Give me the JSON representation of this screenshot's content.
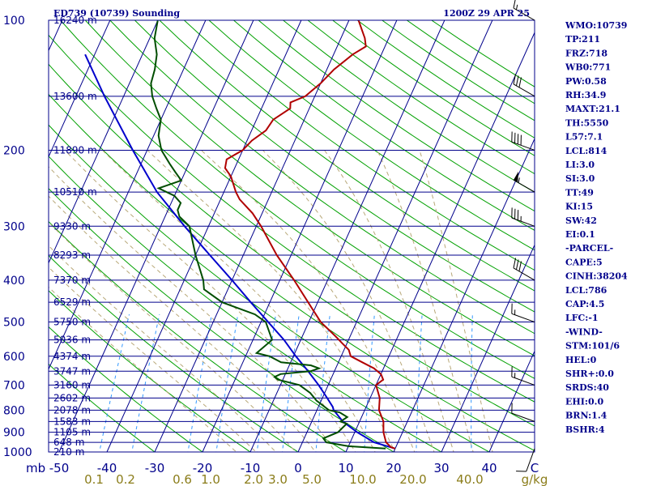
{
  "header": {
    "station_title": "ED739 (10739) Sounding",
    "time_title": "1200Z 29 APR 25"
  },
  "indices": [
    "WMO:10739",
    "TP:211",
    "FRZ:718",
    "WB0:771",
    "PW:0.58",
    "RH:34.9",
    "MAXT:21.1",
    "TH:5550",
    "L57:7.1",
    "LCL:814",
    "LI:3.0",
    "SI:3.0",
    "TT:49",
    "KI:15",
    "SW:42",
    "EI:0.1",
    "-PARCEL-",
    "CAPE:5",
    "CINH:38204",
    "LCL:786",
    "CAP:4.5",
    "LFC:-1",
    "-WIND-",
    "STM:101/6",
    "HEL:0",
    "SHR+:0.0",
    "SRDS:40",
    "EHI:0.0",
    "BRN:1.4",
    "BSHR:4"
  ],
  "colors": {
    "axes": "#00008b",
    "isotherm": "#00008b",
    "dry_adiabat": "#00a000",
    "moist_adiabat": "#b8a878",
    "mixing_ratio": "#3399ff",
    "temperature": "#b00000",
    "dewpoint": "#004d00",
    "parcel": "#0000cc",
    "wind_barb": "#000000"
  },
  "chart_data": {
    "type": "skew-t",
    "pressure_labels": [
      "100",
      "200",
      "300",
      "400",
      "500",
      "600",
      "700",
      "800",
      "900",
      "1000"
    ],
    "pressure_levels": [
      100,
      200,
      300,
      400,
      500,
      600,
      700,
      800,
      900,
      1000
    ],
    "height_labels": [
      {
        "p": 100,
        "text": "16240 m"
      },
      {
        "p": 150,
        "text": "13600 m"
      },
      {
        "p": 200,
        "text": "11890 m"
      },
      {
        "p": 250,
        "text": "10510 m"
      },
      {
        "p": 300,
        "text": "9330 m"
      },
      {
        "p": 350,
        "text": "8293 m"
      },
      {
        "p": 400,
        "text": "7370 m"
      },
      {
        "p": 450,
        "text": "6529 m"
      },
      {
        "p": 500,
        "text": "5750 m"
      },
      {
        "p": 550,
        "text": "5036 m"
      },
      {
        "p": 600,
        "text": "4374 m"
      },
      {
        "p": 650,
        "text": "3747 m"
      },
      {
        "p": 700,
        "text": "3160 m"
      },
      {
        "p": 750,
        "text": "2602 m"
      },
      {
        "p": 800,
        "text": "2078 m"
      },
      {
        "p": 850,
        "text": "1583 m"
      },
      {
        "p": 900,
        "text": "1105 m"
      },
      {
        "p": 950,
        "text": "648 m"
      },
      {
        "p": 1000,
        "text": "210 m"
      }
    ],
    "xaxis_unit": "mb",
    "temperature_labels": [
      "-50",
      "-40",
      "-30",
      "-20",
      "-10",
      "0",
      "10",
      "20",
      "30",
      "40",
      "C"
    ],
    "mixing_ratio_labels": [
      "0.1",
      "0.2",
      "0.6",
      "1.0",
      "2.0",
      "3.0",
      "5.0",
      "10.0",
      "20.0",
      "40.0",
      "g/kg"
    ],
    "mixing_ratio_values": [
      0.1,
      0.2,
      0.6,
      1.0,
      2.0,
      3.0,
      5.0,
      10.0,
      20.0,
      40.0
    ],
    "temperature_profile": [
      [
        982,
        20.0
      ],
      [
        975,
        19.0
      ],
      [
        950,
        17.5
      ],
      [
        900,
        16.0
      ],
      [
        850,
        15.0
      ],
      [
        800,
        13.0
      ],
      [
        750,
        12.0
      ],
      [
        700,
        10.0
      ],
      [
        680,
        11.0
      ],
      [
        660,
        10.0
      ],
      [
        640,
        8.0
      ],
      [
        620,
        5.0
      ],
      [
        600,
        2.0
      ],
      [
        580,
        1.0
      ],
      [
        560,
        -1.0
      ],
      [
        540,
        -3.0
      ],
      [
        500,
        -7.5
      ],
      [
        450,
        -12.0
      ],
      [
        400,
        -17.0
      ],
      [
        350,
        -23.0
      ],
      [
        300,
        -29.0
      ],
      [
        280,
        -32.0
      ],
      [
        260,
        -36.0
      ],
      [
        250,
        -37.5
      ],
      [
        230,
        -40.0
      ],
      [
        220,
        -42.0
      ],
      [
        210,
        -42.5
      ],
      [
        200,
        -40.0
      ],
      [
        190,
        -39.0
      ],
      [
        180,
        -37.0
      ],
      [
        170,
        -36.5
      ],
      [
        160,
        -34.0
      ],
      [
        155,
        -34.5
      ],
      [
        150,
        -32.0
      ],
      [
        140,
        -30.0
      ],
      [
        130,
        -28.5
      ],
      [
        120,
        -26.0
      ],
      [
        115,
        -24.0
      ],
      [
        110,
        -25.0
      ],
      [
        100,
        -28.0
      ]
    ],
    "dewpoint_profile": [
      [
        982,
        18.0
      ],
      [
        970,
        10.0
      ],
      [
        950,
        5.0
      ],
      [
        930,
        4.0
      ],
      [
        900,
        6.5
      ],
      [
        880,
        7.0
      ],
      [
        860,
        7.5
      ],
      [
        850,
        6.0
      ],
      [
        830,
        7.0
      ],
      [
        810,
        5.0
      ],
      [
        800,
        2.5
      ],
      [
        760,
        -1.0
      ],
      [
        730,
        -3.0
      ],
      [
        700,
        -6.0
      ],
      [
        680,
        -11.0
      ],
      [
        670,
        -12.0
      ],
      [
        660,
        -11.0
      ],
      [
        650,
        -5.0
      ],
      [
        640,
        -3.5
      ],
      [
        630,
        -5.5
      ],
      [
        620,
        -12.0
      ],
      [
        600,
        -15.0
      ],
      [
        590,
        -18.0
      ],
      [
        550,
        -16.0
      ],
      [
        500,
        -19.0
      ],
      [
        480,
        -22.0
      ],
      [
        450,
        -30.0
      ],
      [
        420,
        -35.0
      ],
      [
        400,
        -36.0
      ],
      [
        350,
        -40.0
      ],
      [
        300,
        -44.0
      ],
      [
        285,
        -47.0
      ],
      [
        275,
        -48.0
      ],
      [
        265,
        -48.0
      ],
      [
        255,
        -50.0
      ],
      [
        245,
        -54.0
      ],
      [
        235,
        -50.0
      ],
      [
        225,
        -52.0
      ],
      [
        215,
        -54.0
      ],
      [
        200,
        -57.0
      ],
      [
        185,
        -59.0
      ],
      [
        170,
        -60.0
      ],
      [
        160,
        -62.0
      ],
      [
        150,
        -64.0
      ],
      [
        140,
        -65.5
      ],
      [
        130,
        -66.0
      ],
      [
        120,
        -67.0
      ],
      [
        110,
        -69.0
      ],
      [
        100,
        -70.0
      ]
    ],
    "parcel_profile": [
      [
        982,
        20.0
      ],
      [
        950,
        15.0
      ],
      [
        900,
        10.5
      ],
      [
        850,
        6.5
      ],
      [
        800,
        3.5
      ],
      [
        786,
        3.0
      ],
      [
        750,
        1.0
      ],
      [
        700,
        -2.0
      ],
      [
        650,
        -5.5
      ],
      [
        600,
        -9.5
      ],
      [
        550,
        -13.5
      ],
      [
        500,
        -18.5
      ],
      [
        450,
        -24.0
      ],
      [
        400,
        -30.0
      ],
      [
        350,
        -37.0
      ],
      [
        300,
        -45.0
      ],
      [
        250,
        -54.0
      ],
      [
        200,
        -63.0
      ],
      [
        150,
        -74.0
      ],
      [
        120,
        -82.0
      ]
    ],
    "wind_barbs": [
      {
        "p": 982,
        "dir": 200,
        "spd": 10
      },
      {
        "p": 850,
        "dir": 290,
        "spd": 10
      },
      {
        "p": 700,
        "dir": 290,
        "spd": 15
      },
      {
        "p": 500,
        "dir": 290,
        "spd": 15
      },
      {
        "p": 400,
        "dir": 300,
        "spd": 30
      },
      {
        "p": 300,
        "dir": 290,
        "spd": 35
      },
      {
        "p": 250,
        "dir": 300,
        "spd": 55
      },
      {
        "p": 200,
        "dir": 290,
        "spd": 40
      },
      {
        "p": 150,
        "dir": 300,
        "spd": 30
      },
      {
        "p": 100,
        "dir": 300,
        "spd": 15
      }
    ]
  }
}
